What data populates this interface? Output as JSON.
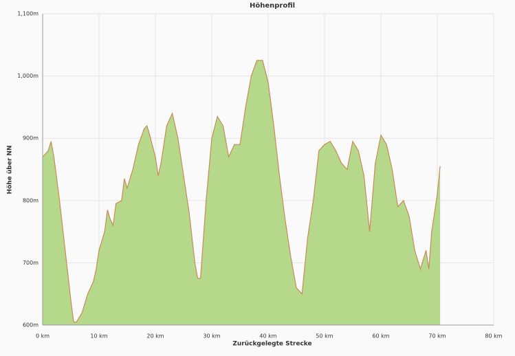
{
  "chart_data": {
    "type": "area",
    "title": "Höhenprofil",
    "x_label": "Zurückgelegte Strecke",
    "y_label": "Höhe über NN",
    "x": [
      0,
      1,
      1.5,
      2,
      3,
      4,
      5,
      5.5,
      6,
      7,
      8,
      9,
      9.5,
      10,
      11,
      11.5,
      12,
      12.5,
      13,
      14,
      14.5,
      15,
      16,
      17,
      18,
      18.5,
      19,
      20,
      20.5,
      21,
      22,
      23,
      24,
      25,
      26,
      27,
      27.5,
      28,
      29,
      30,
      31,
      32,
      33,
      34,
      35,
      36,
      37,
      38,
      39,
      40,
      41,
      42,
      43,
      44,
      45,
      46,
      47,
      48,
      49,
      50,
      51,
      52,
      53,
      54,
      55,
      56,
      57,
      58,
      59,
      60,
      61,
      62,
      63,
      64,
      65,
      66,
      67,
      68,
      68.5,
      69,
      70,
      70.5
    ],
    "series": [
      {
        "color": "#b6d88a",
        "line_color": "#c98a5a",
        "values": [
          870,
          880,
          895,
          870,
          800,
          720,
          640,
          605,
          605,
          620,
          650,
          670,
          690,
          720,
          750,
          785,
          770,
          760,
          795,
          800,
          835,
          820,
          850,
          890,
          915,
          920,
          905,
          870,
          840,
          860,
          920,
          940,
          900,
          840,
          780,
          700,
          675,
          675,
          800,
          900,
          935,
          920,
          870,
          890,
          890,
          950,
          1000,
          1025,
          1025,
          990,
          920,
          840,
          770,
          710,
          660,
          650,
          740,
          800,
          880,
          890,
          895,
          880,
          860,
          850,
          895,
          880,
          840,
          750,
          860,
          905,
          890,
          850,
          790,
          800,
          775,
          720,
          690,
          720,
          690,
          750,
          810,
          855
        ]
      }
    ],
    "xlim": [
      0,
      80
    ],
    "xticks": [
      {
        "value": 0,
        "label": "0 km"
      },
      {
        "value": 10,
        "label": "10 km"
      },
      {
        "value": 20,
        "label": "20 km"
      },
      {
        "value": 30,
        "label": "30 km"
      },
      {
        "value": 40,
        "label": "40 km"
      },
      {
        "value": 50,
        "label": "50 km"
      },
      {
        "value": 60,
        "label": "60 km"
      },
      {
        "value": 70,
        "label": "70 km"
      },
      {
        "value": 80,
        "label": "80 km"
      }
    ],
    "ylim": [
      600,
      1100
    ],
    "yticks": [
      {
        "value": 600,
        "label": "600m"
      },
      {
        "value": 700,
        "label": "700m"
      },
      {
        "value": 800,
        "label": "800m"
      },
      {
        "value": 900,
        "label": "900m"
      },
      {
        "value": 1000,
        "label": "1,000m"
      },
      {
        "value": 1100,
        "label": "1,100m"
      }
    ],
    "grid": true
  }
}
